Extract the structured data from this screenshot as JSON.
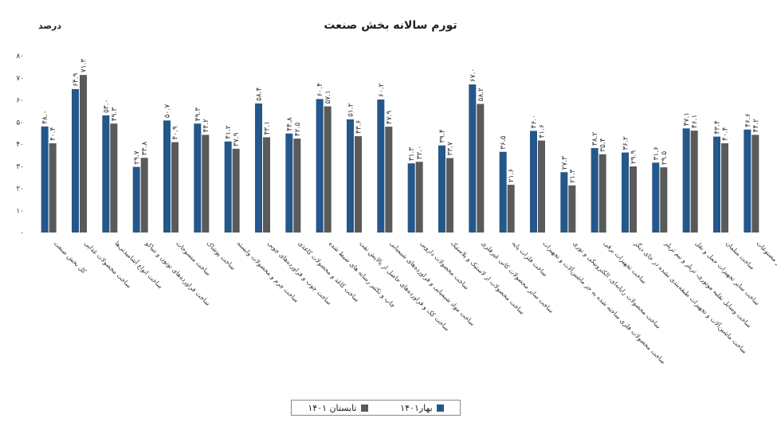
{
  "chart_data": {
    "type": "bar",
    "title": "تورم سالانه بخش صنعت",
    "ylabel": "درصد",
    "ylim": [
      0,
      80
    ],
    "yticks": [
      "۰",
      "۱۰",
      "۲۰",
      "۳۰",
      "۴۰",
      "۵۰",
      "۶۰",
      "۷۰",
      "۸۰"
    ],
    "categories": [
      "کل بخش صنعت",
      "ساخت محصولات غذایی",
      "ساخت انواع آشامیدنی‌ها",
      "ساخت فراورده‌های توتون و تنباکو",
      "ساخت منسوجات",
      "ساخت پوشاک",
      "ساخت چرم و محصولات وابسته",
      "ساخت چوب و فراورده‌های چوبی",
      "ساخت کاغذ و محصولات کاغذی",
      "چاپ و تکثیر رسانه های ضبط شده",
      "ساخت کک و فراورده‌های حاصل از پالایش نفت",
      "ساخت مواد شیمیایی و فراورده‌های شیمیایی",
      "ساخت محصولات دارویی",
      "ساخت محصولات از لاستیک و پلاستیک",
      "ساخت سایر محصولات کانی غیرفلزی",
      "ساخت فلزات پایه",
      "ساخت محصولات فلزی ساخته شده به جز ماشین‌آلات و تجهیزات",
      "ساخت محصولات رایانه‌ای، الکترونیکی و نوری",
      "ساخت تجهیزات برقی",
      "ساخت ماشین‌آلات و تجهیزات طبقه‌بندی نشده در جای دیگر",
      "ساخت وسایل نقلیه موتوری، تریلر و نیم تریلر",
      "ساخت سایر تجهیزات حمل و نقل",
      "ساخت مبلمان",
      "ساخت سایر مصنوعات"
    ],
    "series": [
      {
        "name": "بهار۱۴۰۱",
        "color": "#24578a",
        "values": [
          48.0,
          64.9,
          53.0,
          29.7,
          50.7,
          49.3,
          41.2,
          58.4,
          44.8,
          60.4,
          51.2,
          60.2,
          31.3,
          39.4,
          67.0,
          36.5,
          46.0,
          27.3,
          38.2,
          36.2,
          31.6,
          47.1,
          43.4,
          46.6
        ],
        "labels": [
          "۴۸.۰",
          "۶۴.۹",
          "۵۳.۰",
          "۲۹.۷",
          "۵۰.۷",
          "۴۹.۳",
          "۴۱.۲",
          "۵۸.۴",
          "۴۴.۸",
          "۶۰.۴",
          "۵۱.۲",
          "۶۰.۲",
          "۳۱.۳",
          "۳۹.۴",
          "۶۷.۰",
          "۳۶.۵",
          "۴۶.۰",
          "۲۷.۳",
          "۳۸.۲",
          "۳۶.۲",
          "۳۱.۶",
          "۴۷.۱",
          "۴۳.۴",
          "۴۶.۶"
        ]
      },
      {
        "name": "تابستان ۱۴۰۱",
        "color": "#5a5a5a",
        "values": [
          40.4,
          71.3,
          49.3,
          33.8,
          40.9,
          44.2,
          37.9,
          43.1,
          42.5,
          57.1,
          43.6,
          47.9,
          32.0,
          33.7,
          58.2,
          21.6,
          41.6,
          21.3,
          35.4,
          29.9,
          29.5,
          46.1,
          40.4,
          44.2
        ],
        "labels": [
          "۴۰.۴",
          "۷۱.۳",
          "۴۹.۳",
          "۳۳.۸",
          "۴۰.۹",
          "۴۴.۲",
          "۳۷.۹",
          "۴۳.۱",
          "۴۲.۵",
          "۵۷.۱",
          "۴۳.۶",
          "۴۷.۹",
          "۳۲.۰",
          "۳۳.۷",
          "۵۸.۲",
          "۲۱.۶",
          "۴۱.۶",
          "۲۱.۳",
          "۳۵.۴",
          "۲۹.۹",
          "۲۹.۵",
          "۴۶.۱",
          "۴۰.۴",
          "۴۴.۲"
        ]
      }
    ],
    "legend_position": "bottom",
    "grid": false
  }
}
